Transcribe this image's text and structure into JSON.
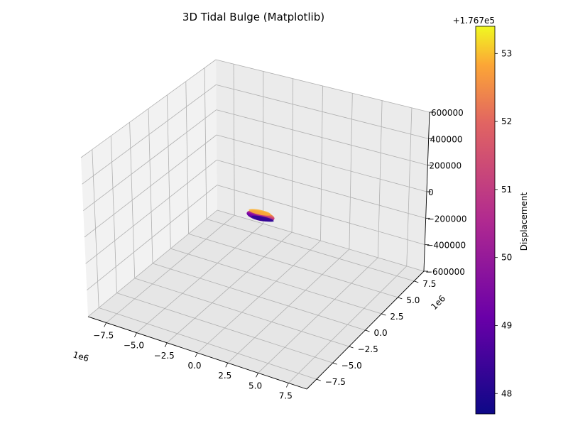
{
  "chart_data": {
    "type": "surface3d",
    "title": "3D Tidal Bulge (Matplotlib)",
    "x_axis": {
      "ticks": [
        -7500000,
        -5000000,
        -2500000,
        0,
        2500000,
        5000000,
        7500000
      ],
      "tick_labels": [
        "−7.5",
        "−5.0",
        "−2.5",
        "0.0",
        "2.5",
        "5.0",
        "7.5"
      ],
      "offset_text": "1e6",
      "range": [
        -9000000,
        9000000
      ]
    },
    "y_axis": {
      "ticks": [
        -7500000,
        -5000000,
        -2500000,
        0,
        2500000,
        5000000,
        7500000
      ],
      "tick_labels": [
        "−7.5",
        "−5.0",
        "−2.5",
        "0.0",
        "2.5",
        "5.0",
        "7.5"
      ],
      "offset_text": "1e6",
      "range": [
        -9000000,
        9000000
      ]
    },
    "z_axis": {
      "ticks": [
        600000,
        400000,
        200000,
        0,
        -200000,
        -400000,
        -600000
      ],
      "tick_labels": [
        "600000",
        "400000",
        "200000",
        "0",
        "−200000",
        "−400000",
        "−600000"
      ],
      "range": [
        -600000,
        600000
      ]
    },
    "colorbar": {
      "label": "Displacement",
      "offset_text": "+1.767e5",
      "ticks": [
        48,
        49,
        50,
        51,
        52,
        53
      ],
      "tick_labels": [
        "48",
        "49",
        "50",
        "51",
        "52",
        "53"
      ],
      "range": [
        47.7,
        53.4
      ],
      "colormap": "plasma"
    },
    "surface": {
      "center": [
        0,
        0,
        0
      ],
      "displacement_min": 176747.7,
      "displacement_max": 176753.4
    },
    "grid": true
  }
}
